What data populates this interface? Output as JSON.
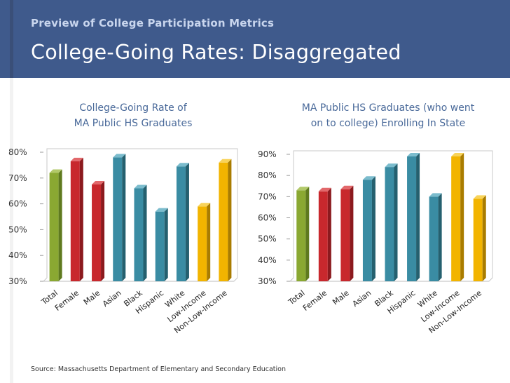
{
  "header": {
    "supertitle": "Preview of College Participation Metrics",
    "title": "College-Going Rates: Disaggregated"
  },
  "source": "Source: Massachusetts Department of Elementary and Secondary Education",
  "colors": {
    "green": "#8aa832",
    "red": "#c8282d",
    "teal": "#3a8ca3",
    "gold": "#f2b400",
    "title": "#4a6a9a"
  },
  "chart_data": [
    {
      "type": "bar",
      "title": "College-Going Rate of MA Public HS Graduates",
      "title_lines": [
        "College-Going Rate of",
        "MA Public HS Graduates"
      ],
      "categories": [
        "Total",
        "Female",
        "Male",
        "Asian",
        "Black",
        "Hispanic",
        "White",
        "Low-Income",
        "Non-Low-Income"
      ],
      "values": [
        72,
        76.5,
        67.5,
        78,
        66,
        57,
        74.5,
        59,
        76
      ],
      "bar_colors": [
        "green",
        "red",
        "red",
        "teal",
        "teal",
        "teal",
        "teal",
        "gold",
        "gold"
      ],
      "ylim": [
        30,
        80
      ],
      "yticks": [
        30,
        40,
        50,
        60,
        70,
        80
      ],
      "ytick_labels": [
        "30%",
        "40%",
        "50%",
        "60%",
        "70%",
        "80%"
      ],
      "xlabel": "",
      "ylabel": ""
    },
    {
      "type": "bar",
      "title": "MA Public HS Graduates (who went on to college) Enrolling In State",
      "title_lines": [
        "MA Public HS Graduates (who went",
        "on to college) Enrolling In State"
      ],
      "categories": [
        "Total",
        "Female",
        "Male",
        "Asian",
        "Black",
        "Hispanic",
        "White",
        "Low-Income",
        "Non-Low-Income"
      ],
      "values": [
        73,
        72.5,
        73.5,
        78,
        84,
        89,
        70,
        89,
        69
      ],
      "bar_colors": [
        "green",
        "red",
        "red",
        "teal",
        "teal",
        "teal",
        "teal",
        "gold",
        "gold"
      ],
      "ylim": [
        30,
        90
      ],
      "yticks": [
        30,
        40,
        50,
        60,
        70,
        80,
        90
      ],
      "ytick_labels": [
        "30%",
        "40%",
        "50%",
        "60%",
        "70%",
        "80%",
        "90%"
      ],
      "xlabel": "",
      "ylabel": ""
    }
  ]
}
